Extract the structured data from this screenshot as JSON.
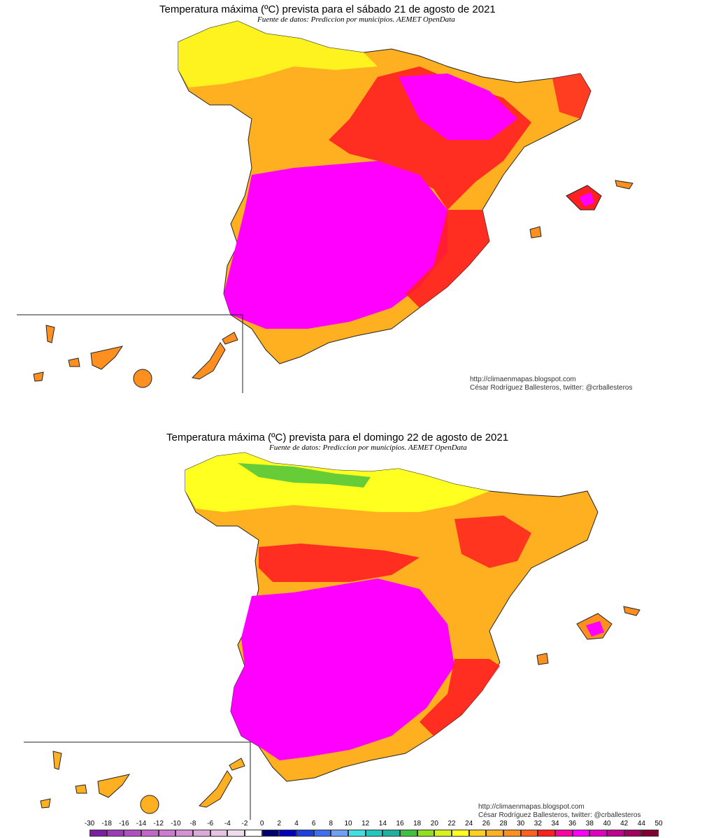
{
  "maps": [
    {
      "title": "Temperatura máxima (ºC) prevista para el sábado 21 de agosto de 2021",
      "source": "Fuente de datos: Prediccion por municipios. AEMET OpenData",
      "credit_url": "http://climaenmapas.blogspot.com",
      "credit_author": "César Rodríguez Ballesteros, twitter: @crballesteros"
    },
    {
      "title": "Temperatura máxima (ºC) prevista para el domingo 22 de agosto de 2021",
      "source": "Fuente de datos: Prediccion por municipios. AEMET OpenData",
      "credit_url": "http://climaenmapas.blogspot.com",
      "credit_author": "César Rodríguez Ballesteros, twitter: @crballesteros"
    }
  ],
  "legend": {
    "labels": [
      "-30",
      "-18",
      "-16",
      "-14",
      "-12",
      "-10",
      "-8",
      "-6",
      "-4",
      "-2",
      "0",
      "2",
      "4",
      "6",
      "8",
      "10",
      "12",
      "14",
      "16",
      "18",
      "20",
      "22",
      "24",
      "26",
      "28",
      "30",
      "32",
      "34",
      "36",
      "38",
      "40",
      "42",
      "44",
      "50"
    ],
    "colors": [
      "#7b1fa2",
      "#9c3bb5",
      "#b04fc2",
      "#c266c9",
      "#cc7ccf",
      "#d491d3",
      "#dcaad9",
      "#e6c3e2",
      "#efdcef",
      "#ffffff",
      "#000070",
      "#0000b8",
      "#1f3fe0",
      "#3f6ff0",
      "#6fa0f5",
      "#40e0e0",
      "#20c8c0",
      "#20b0a0",
      "#40c040",
      "#90e020",
      "#d8f020",
      "#ffff20",
      "#ffd020",
      "#ffb020",
      "#ff9020",
      "#ff6020",
      "#ff2020",
      "#ff00a0",
      "#ff00ff",
      "#e000c0",
      "#c00090",
      "#a00060",
      "#800030"
    ]
  },
  "colors": {
    "hot_magenta": "#ff00ff",
    "red": "#ff2020",
    "orange": "#ff9020",
    "yellow": "#ffff20",
    "green": "#40c040",
    "border": "#222222"
  }
}
